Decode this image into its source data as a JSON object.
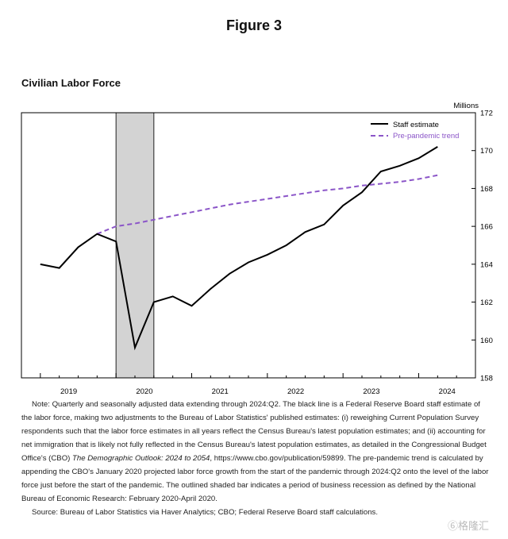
{
  "figure_title": "Figure 3",
  "watermark": "⑥格隆汇",
  "notes": {
    "p1_before_italic": "Note:  Quarterly and seasonally adjusted data extending through 2024:Q2.  The black line is a Federal Reserve Board staff estimate of the labor force, making two adjustments to the Bureau of Labor Statistics' published estimates: (i) reweighing Current Population Survey respondents such that the labor force estimates in all years reflect the Census Bureau's latest population estimates; and (ii) accounting for net immigration that is likely not fully reflected in the Census Bureau's latest population estimates, as detailed in the Congressional Budget Office's (CBO) ",
    "p1_italic": "The Demographic Outlook: 2024 to 2054",
    "p1_after_italic": ", https://www.cbo.gov/publication/59899. The pre-pandemic trend is calculated by appending the CBO's January 2020 projected labor force growth from the start of the pandemic through 2024:Q2 onto the level of the labor force just before the start of the pandemic. The outlined shaded bar indicates a period of business recession as defined by the National Bureau of Economic Research: February 2020-April 2020.",
    "source": "Source: Bureau of Labor Statistics via Haver Analytics; CBO; Federal Reserve Board staff calculations."
  },
  "chart_data": {
    "type": "line",
    "title": "Civilian Labor Force",
    "ylabel": "Millions",
    "ylim": [
      158,
      172
    ],
    "yticks": [
      158,
      160,
      162,
      164,
      166,
      168,
      170,
      172
    ],
    "x_tick_labels": [
      "2019",
      "2020",
      "2021",
      "2022",
      "2023",
      "2024"
    ],
    "xlim": [
      "2018:Q4",
      "2024:Q4"
    ],
    "legend_position": "top-right",
    "grid": false,
    "recession": {
      "start": "2020:Q1",
      "end": "2020:Q2",
      "color": "#d3d3d3"
    },
    "series": [
      {
        "name": "Staff estimate",
        "color": "#000000",
        "style": "solid",
        "x": [
          "2019:Q1",
          "2019:Q2",
          "2019:Q3",
          "2019:Q4",
          "2020:Q1",
          "2020:Q2",
          "2020:Q3",
          "2020:Q4",
          "2021:Q1",
          "2021:Q2",
          "2021:Q3",
          "2021:Q4",
          "2022:Q1",
          "2022:Q2",
          "2022:Q3",
          "2022:Q4",
          "2023:Q1",
          "2023:Q2",
          "2023:Q3",
          "2023:Q4",
          "2024:Q1",
          "2024:Q2"
        ],
        "values": [
          164.0,
          163.8,
          164.9,
          165.6,
          165.2,
          159.6,
          162.0,
          162.3,
          161.8,
          162.7,
          163.5,
          164.1,
          164.5,
          165.0,
          165.7,
          166.1,
          167.1,
          167.8,
          168.9,
          169.2,
          169.6,
          170.2
        ]
      },
      {
        "name": "Pre-pandemic trend",
        "color": "#8b55c8",
        "style": "dashed",
        "x": [
          "2019:Q4",
          "2020:Q1",
          "2020:Q2",
          "2020:Q3",
          "2020:Q4",
          "2021:Q1",
          "2021:Q2",
          "2021:Q3",
          "2021:Q4",
          "2022:Q1",
          "2022:Q2",
          "2022:Q3",
          "2022:Q4",
          "2023:Q1",
          "2023:Q2",
          "2023:Q3",
          "2023:Q4",
          "2024:Q1",
          "2024:Q2"
        ],
        "values": [
          165.6,
          166.0,
          166.15,
          166.35,
          166.55,
          166.75,
          166.95,
          167.15,
          167.3,
          167.45,
          167.6,
          167.75,
          167.9,
          168.0,
          168.15,
          168.25,
          168.35,
          168.5,
          168.7
        ]
      }
    ]
  }
}
